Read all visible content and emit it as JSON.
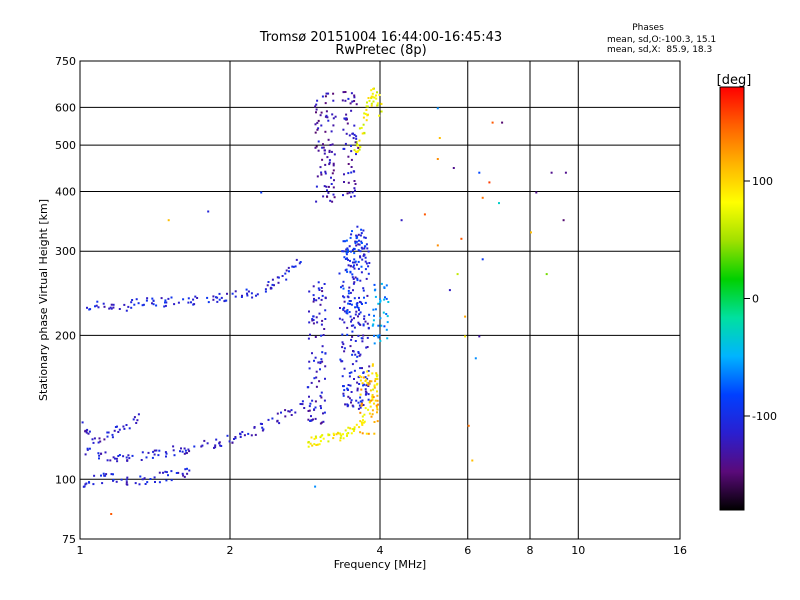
{
  "chart_data": {
    "type": "scatter",
    "title": "Tromsø 20151004 16:44:00-16:45:43",
    "subtitle": "RwPretec (8p)",
    "xlabel": "Frequency [MHz]",
    "ylabel": "Stationary phase Virtual Height [km]",
    "xscale": "log",
    "yscale": "log",
    "xlim": [
      1,
      16
    ],
    "ylim": [
      75,
      750
    ],
    "xticks": [
      1,
      2,
      4,
      6,
      8,
      10,
      16
    ],
    "xgrid": [
      2,
      4,
      6,
      8,
      10
    ],
    "yticks": [
      75,
      100,
      200,
      300,
      400,
      500,
      600,
      750
    ],
    "ygrid": [
      100,
      200,
      300,
      400,
      500,
      600
    ],
    "grid": true,
    "stats": {
      "title": "Phases",
      "line1": "mean, sd,O:-100.3, 15.1",
      "line2": "mean, sd,X:  85.9, 18.3"
    },
    "colorbar": {
      "label": "[deg]",
      "ticks": [
        100,
        0,
        -100
      ],
      "range": [
        -180,
        180
      ],
      "colors": [
        "#000000",
        "#5a0a7a",
        "#2a1fd0",
        "#0040ff",
        "#00b4ff",
        "#00e0a0",
        "#00d000",
        "#a0e000",
        "#ffff00",
        "#ffb400",
        "#ff6000",
        "#ff0000"
      ]
    },
    "traces": [
      {
        "f": [
          1.02,
          1.1,
          1.2,
          1.3,
          1.45,
          1.6,
          1.75,
          1.9,
          2.0,
          2.2,
          2.4,
          2.55,
          2.65,
          2.75
        ],
        "h": [
          232,
          233,
          231,
          234,
          236,
          238,
          238,
          240,
          242,
          246,
          255,
          265,
          275,
          285
        ],
        "phase": -110
      },
      {
        "f": [
          1.02,
          1.1,
          1.2,
          1.3,
          1.45,
          1.6,
          1.75,
          1.9,
          2.05,
          2.2,
          2.4,
          2.6,
          2.8
        ],
        "h": [
          115,
          113,
          112,
          112,
          114,
          116,
          118,
          120,
          123,
          126,
          131,
          138,
          145
        ],
        "phase": -115
      },
      {
        "f": [
          1.0,
          1.03,
          1.07,
          1.12,
          1.18,
          1.25,
          1.32
        ],
        "h": [
          130,
          125,
          122,
          124,
          127,
          131,
          135
        ],
        "phase": -120
      },
      {
        "f": [
          1.0,
          1.05,
          1.12,
          1.2,
          1.3,
          1.4,
          1.5,
          1.6,
          1.65
        ],
        "h": [
          98,
          100,
          101,
          100,
          100,
          101,
          102,
          103,
          104
        ],
        "phase": -110
      },
      {
        "f": [
          2.85,
          2.92,
          3.0,
          3.1,
          3.2,
          3.3,
          3.4,
          3.5,
          3.6,
          3.7,
          3.8,
          3.9,
          3.95
        ],
        "h": [
          120,
          120,
          121,
          122,
          123,
          124,
          126,
          128,
          131,
          135,
          142,
          155,
          170
        ],
        "phase": 85
      },
      {
        "f": [
          3.55,
          3.6,
          3.65,
          3.7,
          3.75,
          3.8,
          3.85,
          3.9,
          3.95,
          4.0
        ],
        "h": [
          470,
          500,
          530,
          560,
          590,
          620,
          640,
          650,
          620,
          580
        ],
        "phase": 80
      }
    ],
    "columns": [
      {
        "f": [
          2.95,
          3.25
        ],
        "h": [
          380,
          650
        ],
        "phase": -130
      },
      {
        "f": [
          3.35,
          3.6
        ],
        "h": [
          390,
          650
        ],
        "phase": -125
      },
      {
        "f": [
          2.85,
          3.1
        ],
        "h": [
          130,
          260
        ],
        "phase": -120
      },
      {
        "f": [
          3.3,
          3.8
        ],
        "h": [
          140,
          330
        ],
        "phase": -110
      },
      {
        "f": [
          3.35,
          3.75
        ],
        "h": [
          220,
          340
        ],
        "phase": -95
      },
      {
        "f": [
          3.85,
          4.15
        ],
        "h": [
          190,
          260
        ],
        "phase": -60
      },
      {
        "f": [
          3.6,
          3.95
        ],
        "h": [
          125,
          175
        ],
        "phase": 110
      }
    ],
    "scatter_sparse": [
      {
        "f": 5.2,
        "h": 600,
        "phase": -60
      },
      {
        "f": 5.25,
        "h": 520,
        "phase": 110
      },
      {
        "f": 5.2,
        "h": 470,
        "phase": 130
      },
      {
        "f": 5.6,
        "h": 450,
        "phase": -140
      },
      {
        "f": 5.8,
        "h": 320,
        "phase": 150
      },
      {
        "f": 6.3,
        "h": 440,
        "phase": -80
      },
      {
        "f": 6.4,
        "h": 390,
        "phase": 140
      },
      {
        "f": 6.6,
        "h": 420,
        "phase": 160
      },
      {
        "f": 6.7,
        "h": 560,
        "phase": 150
      },
      {
        "f": 7.0,
        "h": 560,
        "phase": -150
      },
      {
        "f": 6.9,
        "h": 380,
        "phase": -30
      },
      {
        "f": 8.0,
        "h": 330,
        "phase": 110
      },
      {
        "f": 8.2,
        "h": 400,
        "phase": -140
      },
      {
        "f": 8.8,
        "h": 440,
        "phase": -140
      },
      {
        "f": 9.4,
        "h": 440,
        "phase": -140
      },
      {
        "f": 9.3,
        "h": 350,
        "phase": -150
      },
      {
        "f": 8.6,
        "h": 270,
        "phase": 40
      },
      {
        "f": 6.4,
        "h": 290,
        "phase": -90
      },
      {
        "f": 5.9,
        "h": 220,
        "phase": 120
      },
      {
        "f": 5.7,
        "h": 270,
        "phase": 60
      },
      {
        "f": 5.5,
        "h": 250,
        "phase": -120
      },
      {
        "f": 5.9,
        "h": 200,
        "phase": 90
      },
      {
        "f": 6.3,
        "h": 200,
        "phase": -130
      },
      {
        "f": 6.2,
        "h": 180,
        "phase": -60
      },
      {
        "f": 6.0,
        "h": 130,
        "phase": 140
      },
      {
        "f": 6.1,
        "h": 110,
        "phase": 110
      },
      {
        "f": 5.2,
        "h": 310,
        "phase": 130
      },
      {
        "f": 4.9,
        "h": 360,
        "phase": 150
      },
      {
        "f": 4.4,
        "h": 350,
        "phase": -120
      },
      {
        "f": 1.15,
        "h": 85,
        "phase": 150
      },
      {
        "f": 2.95,
        "h": 97,
        "phase": -60
      },
      {
        "f": 1.5,
        "h": 350,
        "phase": 110
      },
      {
        "f": 1.8,
        "h": 365,
        "phase": -110
      },
      {
        "f": 2.3,
        "h": 400,
        "phase": -90
      }
    ]
  }
}
